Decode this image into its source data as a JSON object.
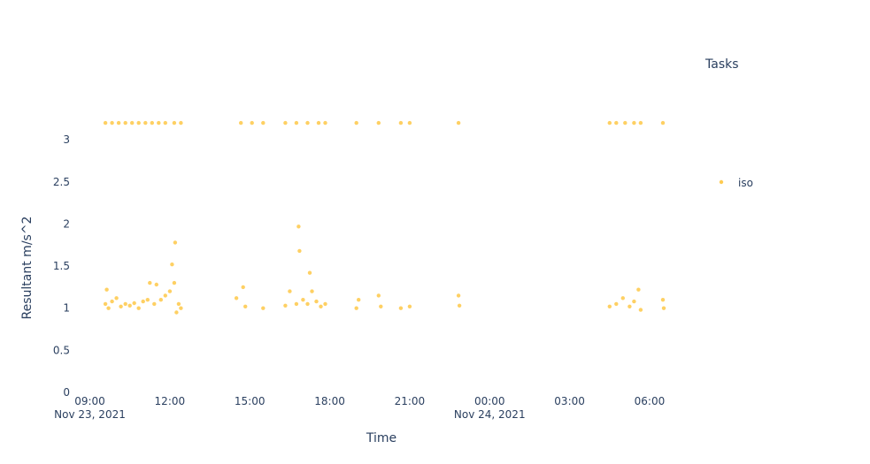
{
  "chart_data": {
    "type": "scatter",
    "title": "",
    "xlabel": "Time",
    "ylabel": "Resultant m/s^2",
    "xlim": [
      "2021-11-23 08:55",
      "2021-11-24 06:30"
    ],
    "ylim": [
      0,
      3.4
    ],
    "x_tick_labels": [
      "09:00",
      "12:00",
      "15:00",
      "18:00",
      "21:00",
      "00:00",
      "03:00",
      "06:00"
    ],
    "x_tick_dates": [
      "Nov 23, 2021",
      "",
      "",
      "",
      "",
      "Nov 24, 2021",
      "",
      ""
    ],
    "x_tick_values": [
      "2021-11-23 09:00",
      "2021-11-23 12:00",
      "2021-11-23 15:00",
      "2021-11-23 18:00",
      "2021-11-23 21:00",
      "2021-11-24 00:00",
      "2021-11-24 03:00",
      "2021-11-24 06:00"
    ],
    "y_tick_labels": [
      "0",
      "0.5",
      "1",
      "1.5",
      "2",
      "2.5",
      "3"
    ],
    "y_tick_values": [
      0,
      0.5,
      1,
      1.5,
      2,
      2.5,
      3
    ],
    "grid": false,
    "legend": {
      "title": "Tasks",
      "placement": "right",
      "entries": [
        "iso"
      ]
    },
    "series": [
      {
        "name": "iso",
        "color": "#FECB52",
        "marker": "circle",
        "points": [
          [
            "2021-11-23 09:35",
            3.2
          ],
          [
            "2021-11-23 09:50",
            3.2
          ],
          [
            "2021-11-23 10:05",
            3.2
          ],
          [
            "2021-11-23 10:20",
            3.2
          ],
          [
            "2021-11-23 10:35",
            3.2
          ],
          [
            "2021-11-23 10:50",
            3.2
          ],
          [
            "2021-11-23 11:05",
            3.2
          ],
          [
            "2021-11-23 11:20",
            3.2
          ],
          [
            "2021-11-23 11:35",
            3.2
          ],
          [
            "2021-11-23 11:50",
            3.2
          ],
          [
            "2021-11-23 12:10",
            3.2
          ],
          [
            "2021-11-23 12:25",
            3.2
          ],
          [
            "2021-11-23 14:40",
            3.2
          ],
          [
            "2021-11-23 15:05",
            3.2
          ],
          [
            "2021-11-23 15:30",
            3.2
          ],
          [
            "2021-11-23 16:20",
            3.2
          ],
          [
            "2021-11-23 16:45",
            3.2
          ],
          [
            "2021-11-23 17:10",
            3.2
          ],
          [
            "2021-11-23 17:35",
            3.2
          ],
          [
            "2021-11-23 17:50",
            3.2
          ],
          [
            "2021-11-23 19:00",
            3.2
          ],
          [
            "2021-11-23 19:50",
            3.2
          ],
          [
            "2021-11-23 20:40",
            3.2
          ],
          [
            "2021-11-23 21:00",
            3.2
          ],
          [
            "2021-11-23 22:50",
            3.2
          ],
          [
            "2021-11-24 04:30",
            3.2
          ],
          [
            "2021-11-24 04:45",
            3.2
          ],
          [
            "2021-11-24 05:05",
            3.2
          ],
          [
            "2021-11-24 05:25",
            3.2
          ],
          [
            "2021-11-24 05:40",
            3.2
          ],
          [
            "2021-11-24 06:30",
            3.2
          ],
          [
            "2021-11-23 09:35",
            1.05
          ],
          [
            "2021-11-23 09:38",
            1.22
          ],
          [
            "2021-11-23 09:42",
            1.0
          ],
          [
            "2021-11-23 09:50",
            1.08
          ],
          [
            "2021-11-23 10:00",
            1.12
          ],
          [
            "2021-11-23 10:10",
            1.02
          ],
          [
            "2021-11-23 10:20",
            1.05
          ],
          [
            "2021-11-23 10:30",
            1.03
          ],
          [
            "2021-11-23 10:40",
            1.06
          ],
          [
            "2021-11-23 10:50",
            1.0
          ],
          [
            "2021-11-23 11:00",
            1.08
          ],
          [
            "2021-11-23 11:10",
            1.1
          ],
          [
            "2021-11-23 11:15",
            1.3
          ],
          [
            "2021-11-23 11:25",
            1.05
          ],
          [
            "2021-11-23 11:30",
            1.28
          ],
          [
            "2021-11-23 11:40",
            1.1
          ],
          [
            "2021-11-23 11:50",
            1.15
          ],
          [
            "2021-11-23 12:00",
            1.2
          ],
          [
            "2021-11-23 12:05",
            1.52
          ],
          [
            "2021-11-23 12:10",
            1.3
          ],
          [
            "2021-11-23 12:12",
            1.78
          ],
          [
            "2021-11-23 12:15",
            0.95
          ],
          [
            "2021-11-23 12:20",
            1.05
          ],
          [
            "2021-11-23 12:25",
            1.0
          ],
          [
            "2021-11-23 14:30",
            1.12
          ],
          [
            "2021-11-23 14:45",
            1.25
          ],
          [
            "2021-11-23 14:50",
            1.02
          ],
          [
            "2021-11-23 15:30",
            1.0
          ],
          [
            "2021-11-23 16:20",
            1.03
          ],
          [
            "2021-11-23 16:30",
            1.2
          ],
          [
            "2021-11-23 16:45",
            1.05
          ],
          [
            "2021-11-23 16:50",
            1.97
          ],
          [
            "2021-11-23 16:52",
            1.68
          ],
          [
            "2021-11-23 17:00",
            1.1
          ],
          [
            "2021-11-23 17:10",
            1.05
          ],
          [
            "2021-11-23 17:15",
            1.42
          ],
          [
            "2021-11-23 17:20",
            1.2
          ],
          [
            "2021-11-23 17:30",
            1.08
          ],
          [
            "2021-11-23 17:40",
            1.02
          ],
          [
            "2021-11-23 17:50",
            1.05
          ],
          [
            "2021-11-23 19:00",
            1.0
          ],
          [
            "2021-11-23 19:05",
            1.1
          ],
          [
            "2021-11-23 19:50",
            1.15
          ],
          [
            "2021-11-23 19:55",
            1.02
          ],
          [
            "2021-11-23 20:40",
            1.0
          ],
          [
            "2021-11-23 21:00",
            1.02
          ],
          [
            "2021-11-23 22:50",
            1.15
          ],
          [
            "2021-11-23 22:52",
            1.03
          ],
          [
            "2021-11-24 04:30",
            1.02
          ],
          [
            "2021-11-24 04:45",
            1.05
          ],
          [
            "2021-11-24 05:00",
            1.12
          ],
          [
            "2021-11-24 05:15",
            1.02
          ],
          [
            "2021-11-24 05:25",
            1.08
          ],
          [
            "2021-11-24 05:35",
            1.22
          ],
          [
            "2021-11-24 05:40",
            0.98
          ],
          [
            "2021-11-24 06:30",
            1.1
          ],
          [
            "2021-11-24 06:32",
            1.0
          ]
        ]
      }
    ]
  }
}
